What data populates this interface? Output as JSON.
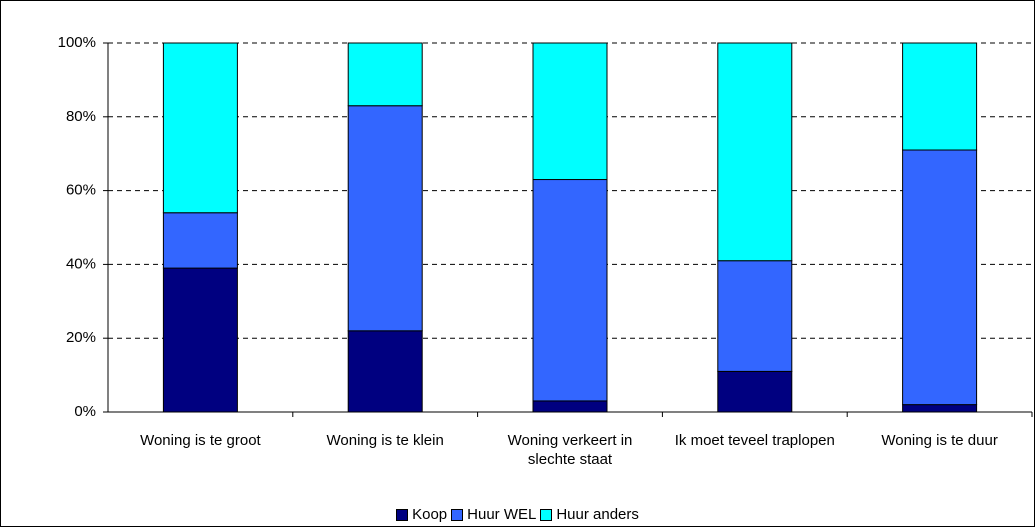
{
  "chart_data": {
    "type": "stacked_bar",
    "categories": [
      "Woning is te groot",
      "Woning is te klein",
      "Woning verkeert in slechte staat",
      "Ik moet teveel traplopen",
      "Woning is te duur"
    ],
    "series": [
      {
        "name": "Koop",
        "color": "#000080",
        "values": [
          39,
          22,
          3,
          11,
          2
        ]
      },
      {
        "name": "Huur WEL",
        "color": "#3366ff",
        "values": [
          15,
          61,
          60,
          30,
          69
        ]
      },
      {
        "name": "Huur anders",
        "color": "#00ffff",
        "values": [
          46,
          17,
          37,
          59,
          29
        ]
      }
    ],
    "ylim": [
      0,
      100
    ],
    "yticks": [
      {
        "value": 0,
        "label": "0%"
      },
      {
        "value": 20,
        "label": "20%"
      },
      {
        "value": 40,
        "label": "40%"
      },
      {
        "value": 60,
        "label": "60%"
      },
      {
        "value": 80,
        "label": "80%"
      },
      {
        "value": 100,
        "label": "100%"
      }
    ],
    "grid": true,
    "legend": "bottom"
  }
}
